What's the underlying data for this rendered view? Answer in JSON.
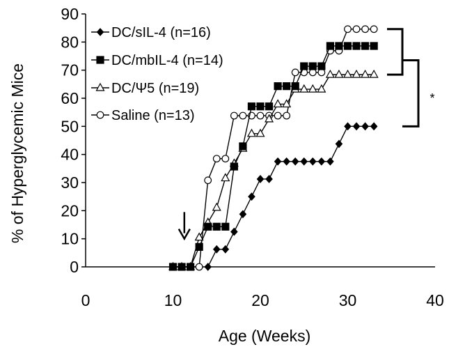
{
  "chart_data": {
    "type": "line",
    "xlabel": "Age (Weeks)",
    "ylabel": "% of Hyperglycemic Mice",
    "xlim": [
      0,
      40
    ],
    "ylim": [
      0,
      90
    ],
    "xticks": [
      "0",
      "10",
      "20",
      "30",
      "40"
    ],
    "yticks": [
      "0",
      "10",
      "20",
      "30",
      "40",
      "50",
      "60",
      "70",
      "80",
      "90"
    ],
    "grid": false,
    "legend_position": "top-left",
    "significance_label": "*",
    "series": [
      {
        "name": "DC/sIL-4 (n=16)",
        "marker": "diamond",
        "fill": "#000000",
        "points": [
          [
            14,
            0
          ],
          [
            15,
            6.25
          ],
          [
            16,
            6.25
          ],
          [
            17,
            12.5
          ],
          [
            18,
            18.75
          ],
          [
            19,
            25
          ],
          [
            20,
            31.25
          ],
          [
            21,
            31.25
          ],
          [
            22,
            37.5
          ],
          [
            23,
            37.5
          ],
          [
            24,
            37.5
          ],
          [
            25,
            37.5
          ],
          [
            26,
            37.5
          ],
          [
            27,
            37.5
          ],
          [
            28,
            37.5
          ],
          [
            29,
            43.75
          ],
          [
            30,
            50
          ],
          [
            31,
            50
          ],
          [
            32,
            50
          ],
          [
            33,
            50
          ]
        ]
      },
      {
        "name": "DC/mbIL-4 (n=14)",
        "marker": "square",
        "fill": "#000000",
        "points": [
          [
            10,
            0
          ],
          [
            11,
            0
          ],
          [
            12,
            0
          ],
          [
            13,
            7.1
          ],
          [
            14,
            14.3
          ],
          [
            15,
            14.3
          ],
          [
            16,
            14.3
          ],
          [
            17,
            35.7
          ],
          [
            18,
            42.9
          ],
          [
            19,
            57.1
          ],
          [
            20,
            57.1
          ],
          [
            21,
            57.1
          ],
          [
            22,
            64.3
          ],
          [
            23,
            64.3
          ],
          [
            24,
            64.3
          ],
          [
            25,
            71.4
          ],
          [
            26,
            71.4
          ],
          [
            27,
            71.4
          ],
          [
            28,
            78.6
          ],
          [
            29,
            78.6
          ],
          [
            30,
            78.6
          ],
          [
            31,
            78.6
          ],
          [
            32,
            78.6
          ],
          [
            33,
            78.6
          ]
        ]
      },
      {
        "name": "DC/Ψ5 (n=19)",
        "marker": "triangle",
        "fill": "#ffffff",
        "points": [
          [
            10,
            0
          ],
          [
            11,
            0
          ],
          [
            12,
            0
          ],
          [
            13,
            10.5
          ],
          [
            14,
            15.8
          ],
          [
            15,
            21.1
          ],
          [
            16,
            31.6
          ],
          [
            17,
            36.8
          ],
          [
            18,
            42.1
          ],
          [
            19,
            47.4
          ],
          [
            20,
            47.4
          ],
          [
            21,
            52.6
          ],
          [
            22,
            57.9
          ],
          [
            23,
            57.9
          ],
          [
            24,
            63.2
          ],
          [
            25,
            63.2
          ],
          [
            26,
            63.2
          ],
          [
            27,
            63.2
          ],
          [
            28,
            68.4
          ],
          [
            29,
            68.4
          ],
          [
            30,
            68.4
          ],
          [
            31,
            68.4
          ],
          [
            32,
            68.4
          ],
          [
            33,
            68.4
          ]
        ]
      },
      {
        "name": "Saline (n=13)",
        "marker": "circle",
        "fill": "#ffffff",
        "points": [
          [
            10,
            0
          ],
          [
            11,
            0
          ],
          [
            12,
            0
          ],
          [
            13,
            0
          ],
          [
            14,
            30.8
          ],
          [
            15,
            38.5
          ],
          [
            16,
            38.5
          ],
          [
            17,
            53.8
          ],
          [
            18,
            53.8
          ],
          [
            19,
            53.8
          ],
          [
            20,
            53.8
          ],
          [
            21,
            53.8
          ],
          [
            22,
            53.8
          ],
          [
            23,
            53.8
          ],
          [
            24,
            69.2
          ],
          [
            25,
            69.2
          ],
          [
            26,
            69.2
          ],
          [
            27,
            69.2
          ],
          [
            28,
            76.9
          ],
          [
            29,
            76.9
          ],
          [
            30,
            84.6
          ],
          [
            31,
            84.6
          ],
          [
            32,
            84.6
          ],
          [
            33,
            84.6
          ]
        ]
      }
    ],
    "annotations": [
      {
        "type": "arrow-down",
        "x": 11.3,
        "y_from": 19.5,
        "y_to": 10
      }
    ]
  }
}
